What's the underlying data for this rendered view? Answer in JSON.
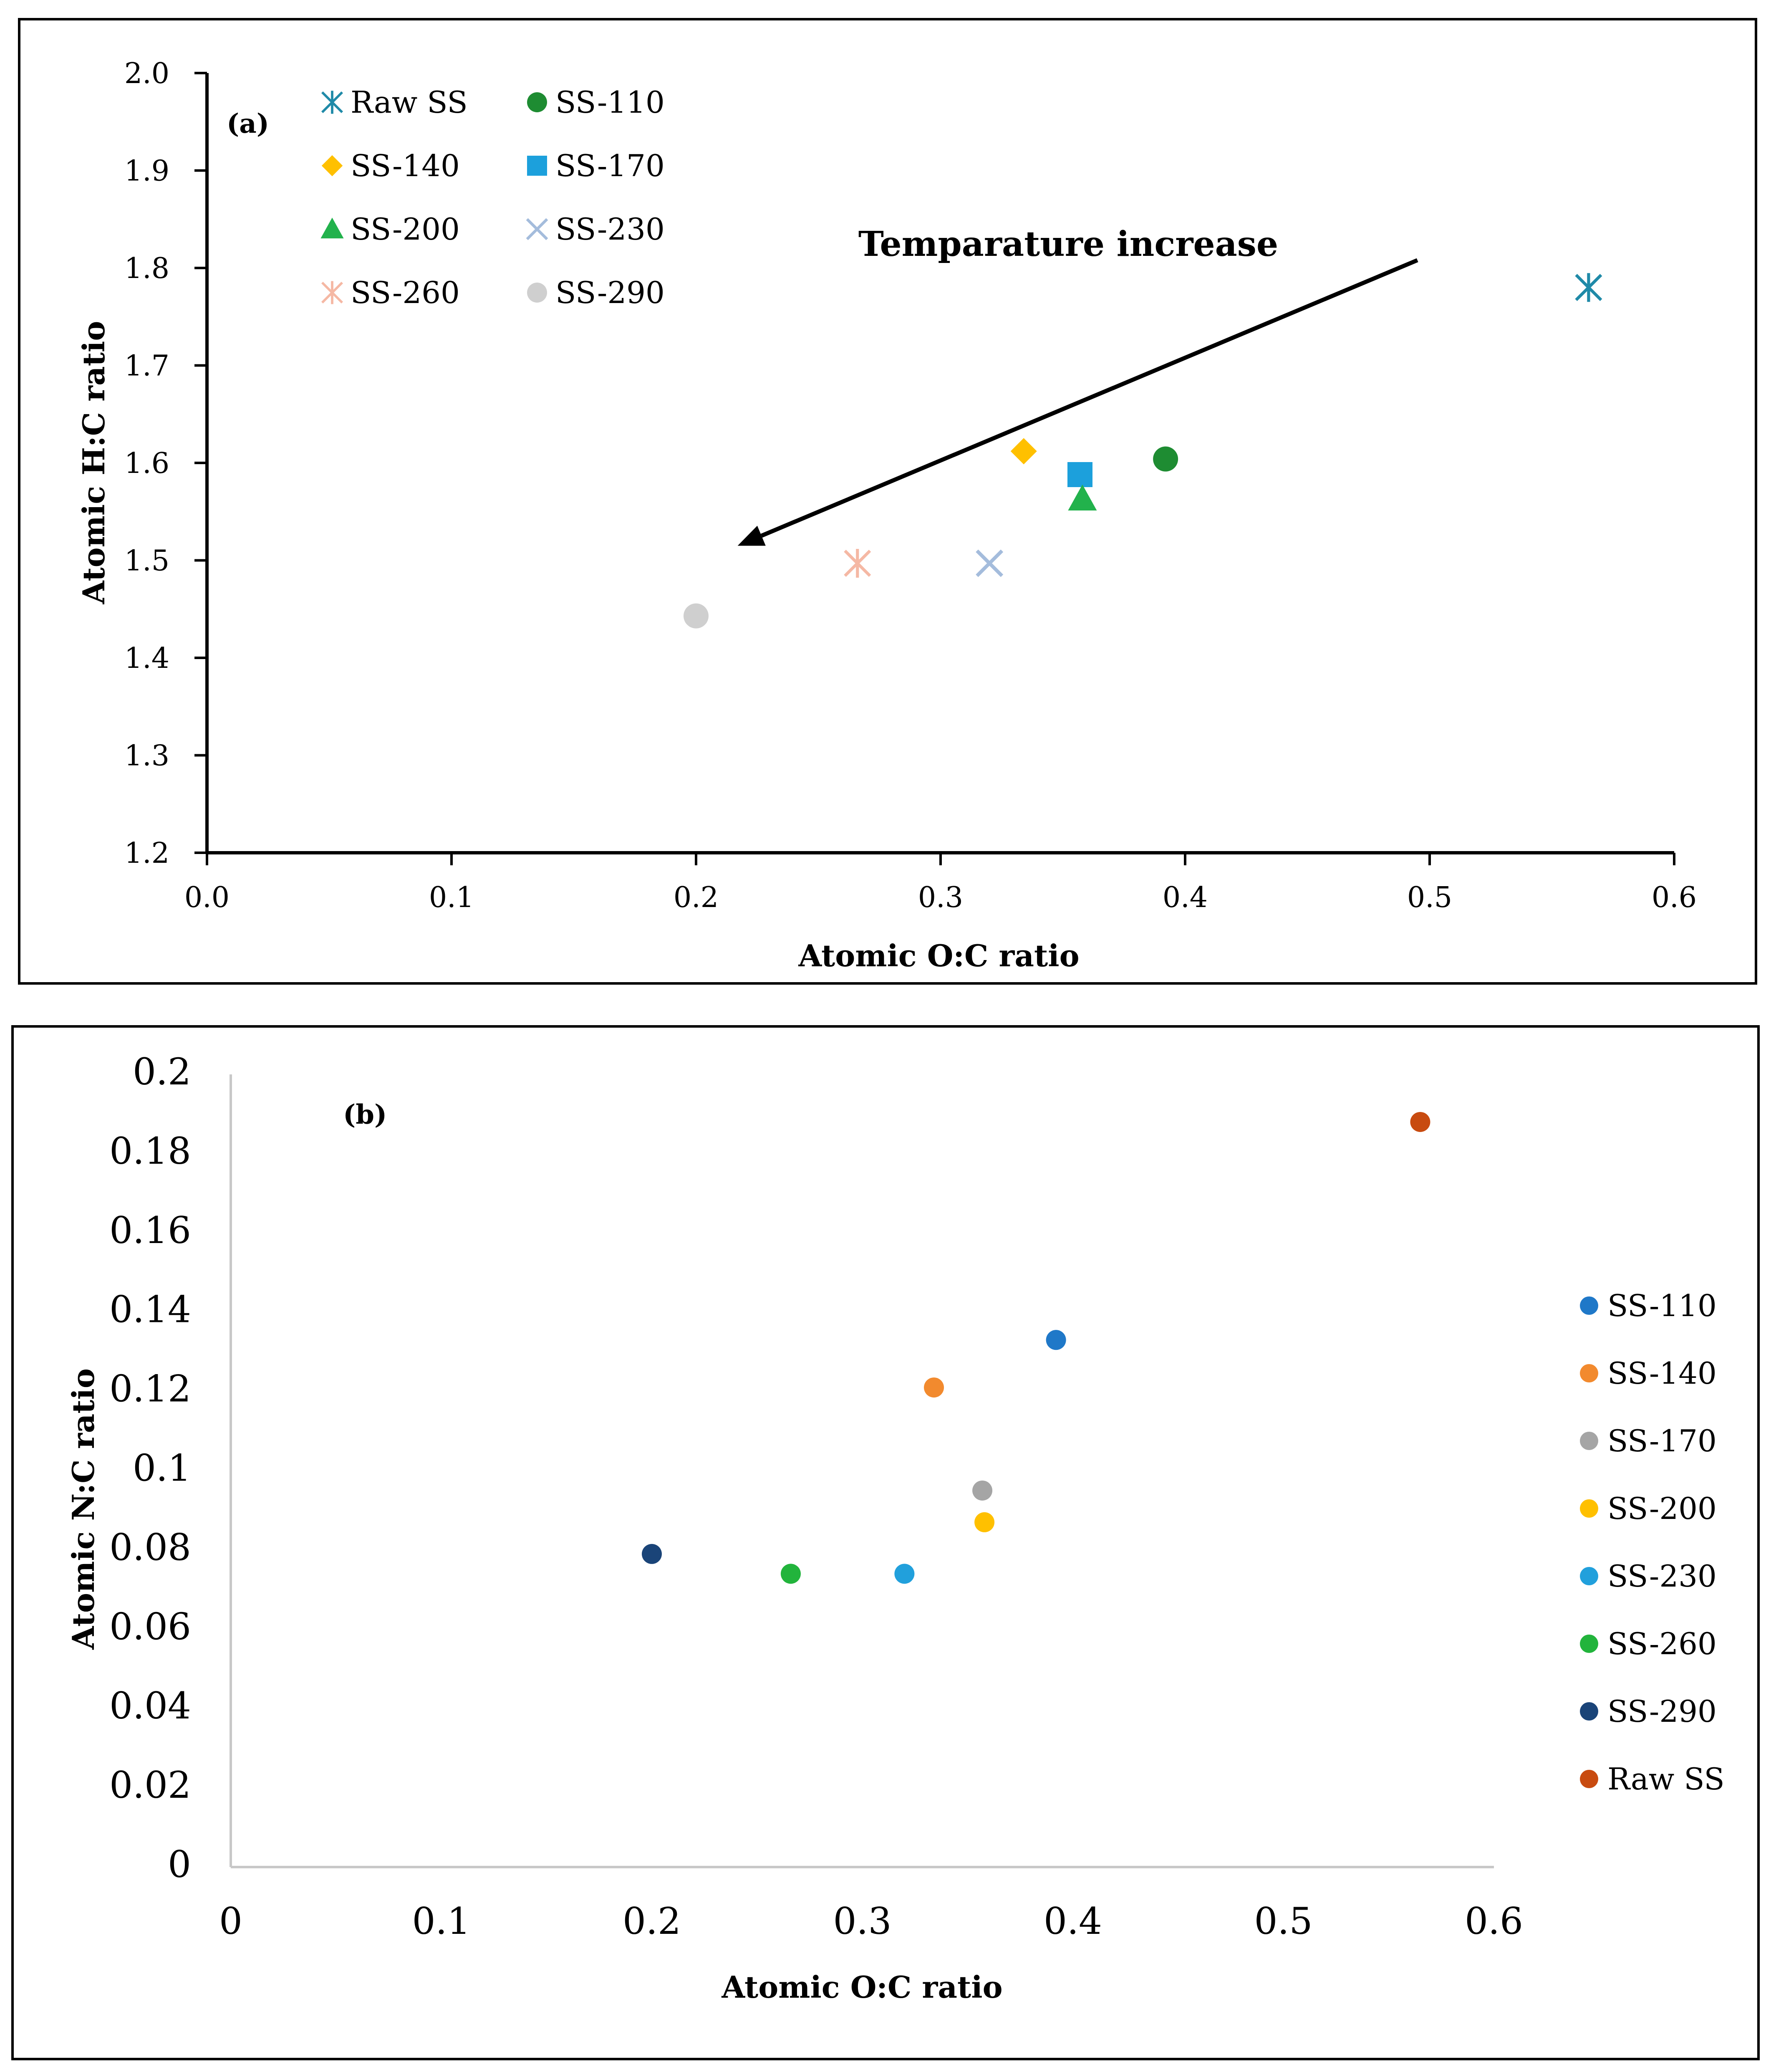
{
  "chart_data": [
    {
      "type": "scatter",
      "panel_label": "(a)",
      "xlabel": "Atomic O:C ratio",
      "ylabel": "Atomic H:C ratio",
      "xlim": [
        0,
        0.6
      ],
      "ylim": [
        1.2,
        2.0
      ],
      "x_ticks": [
        "0.0",
        "0.1",
        "0.2",
        "0.3",
        "0.4",
        "0.5",
        "0.6"
      ],
      "y_ticks": [
        "1.2",
        "1.3",
        "1.4",
        "1.5",
        "1.6",
        "1.7",
        "1.8",
        "1.9",
        "2.0"
      ],
      "grid": false,
      "legend_position": "top-left",
      "annotation": "Temparature increase",
      "series": [
        {
          "name": "Raw SS",
          "marker": "asterisk",
          "color": "#1f8aa8",
          "x": 0.565,
          "y": 1.78
        },
        {
          "name": "SS-110",
          "marker": "circle",
          "color": "#1e8c32",
          "x": 0.392,
          "y": 1.604
        },
        {
          "name": "SS-140",
          "marker": "diamond",
          "color": "#ffc000",
          "x": 0.334,
          "y": 1.612
        },
        {
          "name": "SS-170",
          "marker": "square",
          "color": "#1ca0dc",
          "x": 0.357,
          "y": 1.588
        },
        {
          "name": "SS-200",
          "marker": "triangle",
          "color": "#22b24c",
          "x": 0.358,
          "y": 1.563
        },
        {
          "name": "SS-230",
          "marker": "x",
          "color": "#a4bcdc",
          "x": 0.32,
          "y": 1.497
        },
        {
          "name": "SS-260",
          "marker": "asterisk",
          "color": "#f5b8a4",
          "x": 0.266,
          "y": 1.497
        },
        {
          "name": "SS-290",
          "marker": "circle",
          "color": "#cfcfcf",
          "x": 0.2,
          "y": 1.443
        }
      ],
      "arrow": {
        "from": [
          0.495,
          1.808
        ],
        "to": [
          0.217,
          1.515
        ]
      }
    },
    {
      "type": "scatter",
      "panel_label": "(b)",
      "xlabel": "Atomic O:C ratio",
      "ylabel": "Atomic N:C ratio",
      "xlim": [
        0,
        0.6
      ],
      "ylim": [
        0,
        0.2
      ],
      "x_ticks": [
        "0",
        "0.1",
        "0.2",
        "0.3",
        "0.4",
        "0.5",
        "0.6"
      ],
      "y_ticks": [
        "0",
        "0.02",
        "0.04",
        "0.06",
        "0.08",
        "0.1",
        "0.12",
        "0.14",
        "0.16",
        "0.18",
        "0.2"
      ],
      "grid": false,
      "legend_position": "right",
      "series": [
        {
          "name": "SS-110",
          "color": "#1f78c8",
          "x": 0.392,
          "y": 0.133
        },
        {
          "name": "SS-140",
          "color": "#f28a2e",
          "x": 0.334,
          "y": 0.121
        },
        {
          "name": "SS-170",
          "color": "#a5a5a5",
          "x": 0.357,
          "y": 0.095
        },
        {
          "name": "SS-200",
          "color": "#ffc000",
          "x": 0.358,
          "y": 0.087
        },
        {
          "name": "SS-230",
          "color": "#21a0dc",
          "x": 0.32,
          "y": 0.074
        },
        {
          "name": "SS-260",
          "color": "#22b43c",
          "x": 0.266,
          "y": 0.074
        },
        {
          "name": "SS-290",
          "color": "#1a4478",
          "x": 0.2,
          "y": 0.079
        },
        {
          "name": "Raw SS",
          "color": "#c84b10",
          "x": 0.565,
          "y": 0.188
        }
      ]
    }
  ]
}
